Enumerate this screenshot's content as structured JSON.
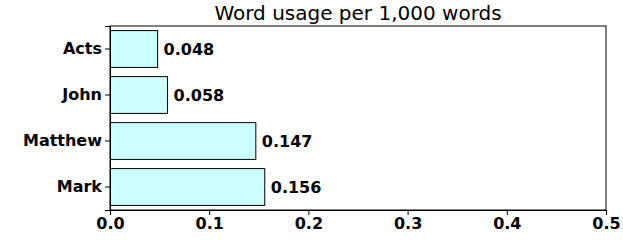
{
  "chart_data": {
    "type": "bar",
    "title": "Word usage per 1,000 words",
    "orientation": "horizontal",
    "categories": [
      "Acts",
      "John",
      "Matthew",
      "Mark"
    ],
    "values": [
      0.048,
      0.058,
      0.147,
      0.156
    ],
    "color": "#ccffff",
    "xlim": [
      0,
      0.5
    ],
    "xticks": [
      {
        "value": 0,
        "label": "0.0"
      },
      0.1,
      0.2,
      0.3,
      0.4,
      0.5
    ],
    "data_labels": true,
    "grid": false
  }
}
